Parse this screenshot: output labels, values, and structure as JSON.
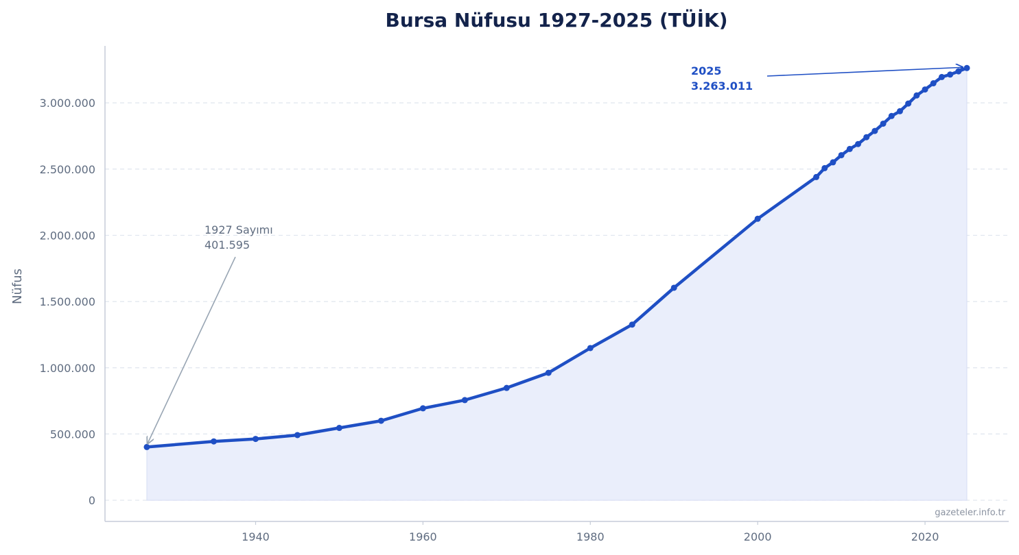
{
  "chart_data": {
    "type": "line",
    "title": "Bursa Nüfusu 1927-2025 (TÜİK)",
    "ylabel": "Nüfus",
    "xlabel": "",
    "xlim": [
      1922,
      2030
    ],
    "ylim": [
      -160000,
      3430000
    ],
    "x_ticks": [
      {
        "value": 1940,
        "label": "1940"
      },
      {
        "value": 1960,
        "label": "1960"
      },
      {
        "value": 1980,
        "label": "1980"
      },
      {
        "value": 2000,
        "label": "2000"
      },
      {
        "value": 2020,
        "label": "2020"
      }
    ],
    "y_ticks": [
      {
        "value": 0,
        "label": "0"
      },
      {
        "value": 500000,
        "label": "500.000"
      },
      {
        "value": 1000000,
        "label": "1.000.000"
      },
      {
        "value": 1500000,
        "label": "1.500.000"
      },
      {
        "value": 2000000,
        "label": "2.000.000"
      },
      {
        "value": 2500000,
        "label": "2.500.000"
      },
      {
        "value": 3000000,
        "label": "3.000.000"
      }
    ],
    "grid": "horizontal-dashed",
    "fill_under_line": true,
    "colors": {
      "line": "#1f4fc4",
      "fill": "#eaeefb",
      "fill_edge": "#d5dcf3",
      "start_arrow": "#98a5b3",
      "end_arrow": "#1f4fc4"
    },
    "series": [
      {
        "x": [
          1927,
          1935,
          1940,
          1945,
          1950,
          1955,
          1960,
          1965,
          1970,
          1975,
          1980,
          1985,
          1990,
          2000,
          2007,
          2008,
          2009,
          2010,
          2011,
          2012,
          2013,
          2014,
          2015,
          2016,
          2017,
          2018,
          2019,
          2020,
          2021,
          2022,
          2023,
          2024,
          2025
        ],
        "y": [
          401595,
          444000,
          463000,
          492000,
          546000,
          600000,
          694000,
          756000,
          848000,
          962000,
          1149000,
          1326000,
          1604000,
          2125000,
          2440000,
          2507000,
          2551000,
          2605000,
          2652000,
          2689000,
          2741000,
          2788000,
          2843000,
          2901000,
          2937000,
          2995000,
          3056000,
          3101000,
          3148000,
          3195000,
          3214000,
          3238000,
          3263011
        ]
      }
    ],
    "annotations": {
      "start": {
        "x": 1927,
        "y": 401595,
        "line1": "1927 Sayımı",
        "line2": "401.595"
      },
      "end": {
        "x": 2025,
        "y": 3263011,
        "line1": "2025",
        "line2": "3.263.011"
      }
    },
    "credit": "gazeteler.info.tr"
  }
}
